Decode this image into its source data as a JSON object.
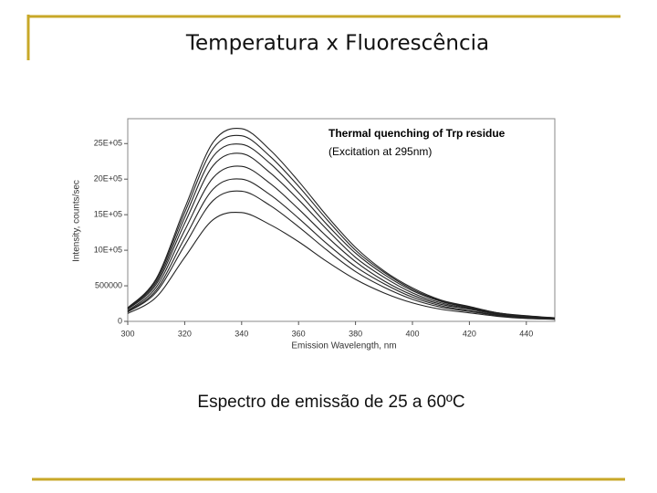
{
  "title": "Temperatura x Fluorescência",
  "caption": "Espectro de emissão de 25 a 60ºC",
  "chart_data": {
    "type": "line",
    "title": "Thermal quenching of Trp residue",
    "subtitle": "(Excitation at 295nm)",
    "x_label": "Emission Wavelength, nm",
    "y_label": "Intensity, counts/sec",
    "x": [
      300,
      310,
      320,
      330,
      340,
      350,
      360,
      370,
      380,
      390,
      400,
      410,
      420,
      430,
      440,
      450
    ],
    "series": [
      {
        "color": "#222222",
        "values": [
          190000,
          600000,
          1590000,
          2520000,
          2710000,
          2410000,
          1970000,
          1480000,
          1040000,
          710000,
          470000,
          300000,
          210000,
          120000,
          80000,
          50000
        ]
      },
      {
        "color": "#222222",
        "values": [
          180000,
          580000,
          1530000,
          2430000,
          2610000,
          2320000,
          1900000,
          1430000,
          1000000,
          690000,
          450000,
          290000,
          200000,
          120000,
          70000,
          50000
        ]
      },
      {
        "color": "#222222",
        "values": [
          180000,
          550000,
          1460000,
          2320000,
          2490000,
          2220000,
          1810000,
          1360000,
          960000,
          660000,
          430000,
          280000,
          190000,
          110000,
          70000,
          50000
        ]
      },
      {
        "color": "#222222",
        "values": [
          170000,
          520000,
          1380000,
          2190000,
          2360000,
          2090000,
          1710000,
          1290000,
          900000,
          620000,
          400000,
          260000,
          180000,
          110000,
          70000,
          40000
        ]
      },
      {
        "color": "#222222",
        "values": [
          150000,
          480000,
          1280000,
          2020000,
          2180000,
          1940000,
          1580000,
          1190000,
          840000,
          570000,
          370000,
          240000,
          170000,
          100000,
          60000,
          40000
        ]
      },
      {
        "color": "#222222",
        "values": [
          140000,
          440000,
          1170000,
          1860000,
          2000000,
          1780000,
          1450000,
          1090000,
          770000,
          530000,
          340000,
          220000,
          150000,
          90000,
          60000,
          40000
        ]
      },
      {
        "color": "#222222",
        "values": [
          130000,
          410000,
          1070000,
          1700000,
          1830000,
          1630000,
          1330000,
          1000000,
          700000,
          480000,
          310000,
          200000,
          140000,
          80000,
          50000,
          30000
        ]
      },
      {
        "color": "#222222",
        "values": [
          110000,
          340000,
          900000,
          1430000,
          1530000,
          1360000,
          1120000,
          840000,
          590000,
          400000,
          260000,
          170000,
          120000,
          70000,
          40000,
          30000
        ]
      }
    ],
    "xlim": [
      300,
      450
    ],
    "xticks": [
      300,
      320,
      340,
      360,
      380,
      400,
      420,
      440
    ],
    "ylim": [
      0,
      2850000
    ],
    "yticks": [
      0,
      500000,
      {
        "value": 1000000,
        "label": "10E+05"
      },
      {
        "value": 1500000,
        "label": "15E+05"
      },
      {
        "value": 2000000,
        "label": "20E+05"
      },
      {
        "value": 2500000,
        "label": "25E+05"
      }
    ]
  }
}
